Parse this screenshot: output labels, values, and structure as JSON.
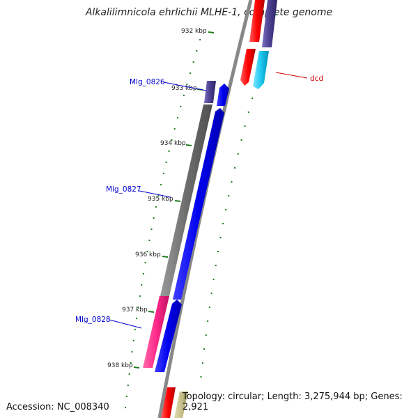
{
  "title": "Alkalilimnicola ehrlichii MLHE-1, complete genome",
  "footer": {
    "accession": "Accession: NC_008340",
    "topology": "Topology: circular; Length: 3,275,944 bp; Genes: 2,921"
  },
  "ticks": [
    "932 kbp",
    "933 kbp",
    "934 kbp",
    "935 kbp",
    "936 kbp",
    "937 kbp",
    "938 kbp"
  ],
  "gene_labels": {
    "mlg_0826": "Mlg_0826",
    "mlg_0827": "Mlg_0827",
    "mlg_0828": "Mlg_0828",
    "dcd": "dcd"
  },
  "colors": {
    "backbone": "#888888",
    "tick_green": "#1e7a1e",
    "cds_blue": "#0000ee",
    "gene_grey": "#6e6e6e",
    "gene_navy": "#4a3f8f",
    "gene_red": "#ff0000",
    "gene_cyan": "#1ec8f0",
    "gene_magenta": "#ff2a8c",
    "gene_khaki": "#c8c08a",
    "label_blue": "#0000cc",
    "label_red": "#cc0000"
  }
}
